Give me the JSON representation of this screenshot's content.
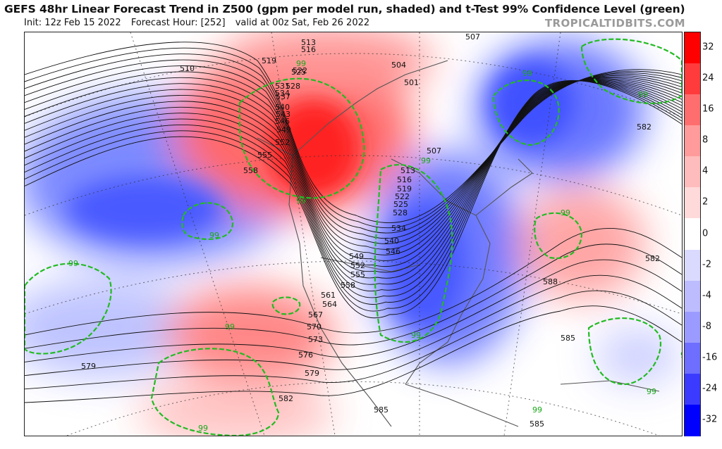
{
  "header": {
    "title": "GEFS 48hr Linear Forecast Trend in Z500 (gpm per model run, shaded) and t-Test 99% Confidence Level (green)",
    "init": "Init: 12z Feb 15 2022",
    "forecast_hour": "Forecast Hour: [252]",
    "valid": "valid at 00z Sat, Feb 26 2022",
    "brand": "TROPICALTIDBITS.COM"
  },
  "colorbar": {
    "labels": [
      "32",
      "24",
      "16",
      "8",
      "4",
      "2",
      "0",
      "-2",
      "-4",
      "-8",
      "-16",
      "-24",
      "-32"
    ],
    "colors": [
      "#ff0000",
      "#ff3b3b",
      "#ff6e6e",
      "#ff9b9b",
      "#ffbcbc",
      "#ffdada",
      "#ffffff",
      "#dadaff",
      "#bcbcff",
      "#9b9bff",
      "#6e6eff",
      "#3b3bff",
      "#0000ff"
    ]
  },
  "map": {
    "positive_color": "#ff5a5a",
    "negative_color": "#5a6bff",
    "confidence_color": "#22bb22",
    "contour_labels": [
      {
        "t": "510"
      },
      {
        "t": "513"
      },
      {
        "t": "516"
      },
      {
        "t": "519"
      },
      {
        "t": "522"
      },
      {
        "t": "525"
      },
      {
        "t": "528"
      },
      {
        "t": "531"
      },
      {
        "t": "534"
      },
      {
        "t": "537"
      },
      {
        "t": "540"
      },
      {
        "t": "543"
      },
      {
        "t": "546"
      },
      {
        "t": "549"
      },
      {
        "t": "552"
      },
      {
        "t": "555"
      },
      {
        "t": "558"
      },
      {
        "t": "507"
      },
      {
        "t": "504"
      },
      {
        "t": "501"
      },
      {
        "t": "507"
      },
      {
        "t": "513"
      },
      {
        "t": "516"
      },
      {
        "t": "519"
      },
      {
        "t": "522"
      },
      {
        "t": "525"
      },
      {
        "t": "528"
      },
      {
        "t": "534"
      },
      {
        "t": "540"
      },
      {
        "t": "546"
      },
      {
        "t": "549"
      },
      {
        "t": "552"
      },
      {
        "t": "555"
      },
      {
        "t": "558"
      },
      {
        "t": "561"
      },
      {
        "t": "564"
      },
      {
        "t": "567"
      },
      {
        "t": "570"
      },
      {
        "t": "573"
      },
      {
        "t": "576"
      },
      {
        "t": "579"
      },
      {
        "t": "582"
      },
      {
        "t": "579"
      },
      {
        "t": "582"
      },
      {
        "t": "588"
      },
      {
        "t": "585"
      },
      {
        "t": "585"
      },
      {
        "t": "585"
      },
      {
        "t": "582"
      }
    ],
    "confidence_labels": [
      "99",
      "99",
      "99",
      "99",
      "99",
      "99",
      "99",
      "99",
      "99",
      "99",
      "99",
      "99",
      "99",
      "99"
    ]
  }
}
